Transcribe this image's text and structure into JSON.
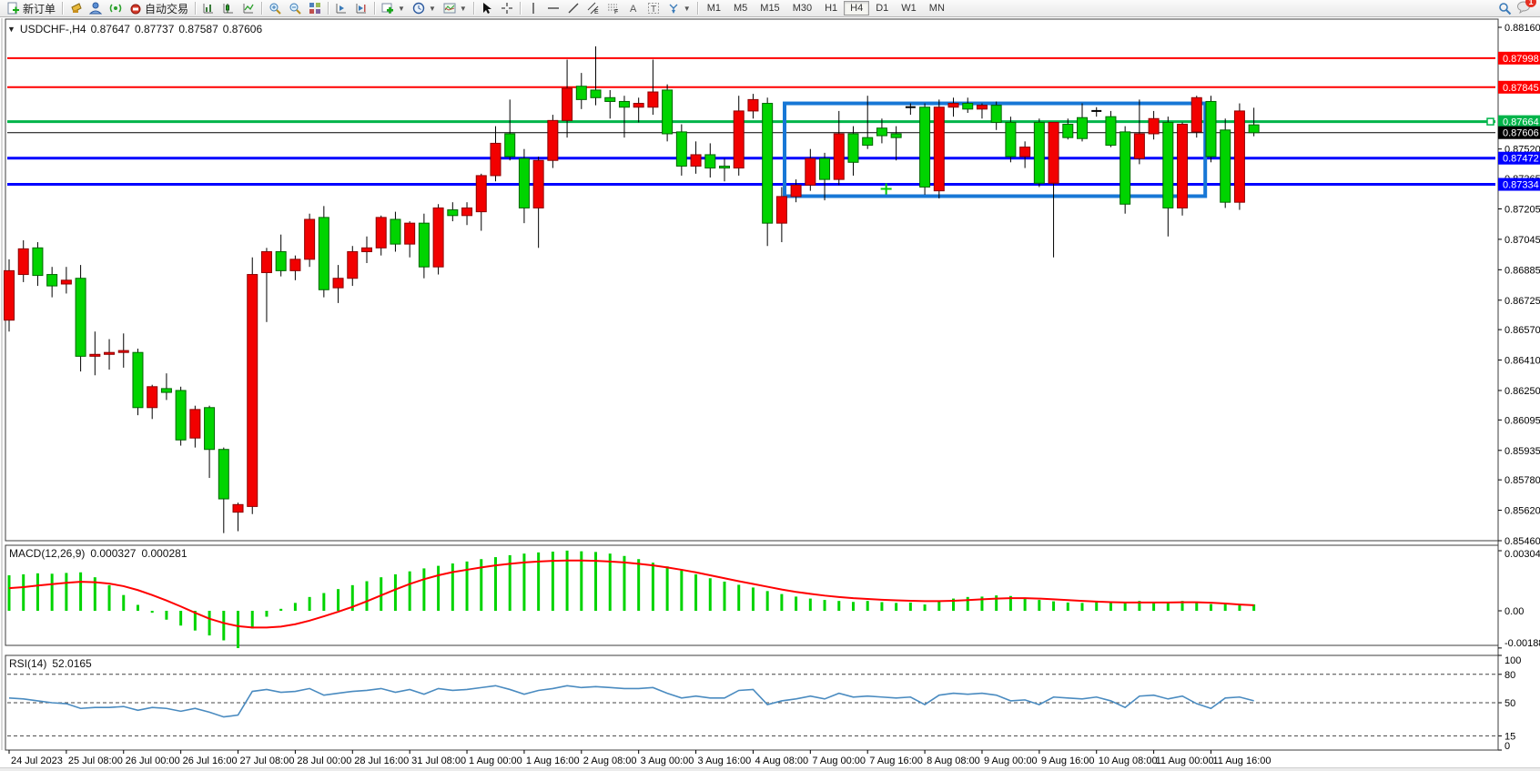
{
  "toolbar": {
    "new_order_label": "新订单",
    "auto_trading_label": "自动交易",
    "timeframes": [
      "M1",
      "M5",
      "M15",
      "M30",
      "H1",
      "H4",
      "D1",
      "W1",
      "MN"
    ],
    "active_timeframe": "H4",
    "notification_count": "1"
  },
  "chart": {
    "symbol_period": "USDCHF-,H4",
    "ohlc": {
      "open": "0.87647",
      "high": "0.87737",
      "low": "0.87587",
      "close": "0.87606"
    },
    "price_ticks": [
      "0.88160",
      "0.87520",
      "0.87365",
      "0.87205",
      "0.87045",
      "0.86885",
      "0.86725",
      "0.86570",
      "0.86410",
      "0.86250",
      "0.86095",
      "0.85935",
      "0.85780",
      "0.85620",
      "0.85460"
    ],
    "price_min": "0.85460",
    "price_max": "0.88160",
    "hlines": [
      {
        "type": "resistance",
        "label": "0.87998",
        "color": "#ff0000",
        "thickness": 2
      },
      {
        "type": "resistance",
        "label": "0.87845",
        "color": "#ff0000",
        "thickness": 2
      },
      {
        "type": "pivot",
        "label": "0.87664",
        "color": "#00b44a",
        "thickness": 3,
        "endpoint_marker": true
      },
      {
        "type": "current-price",
        "label": "0.87606",
        "color": "#000000",
        "thickness": 1
      },
      {
        "type": "support",
        "label": "0.87472",
        "color": "#0000ff",
        "thickness": 3
      },
      {
        "type": "support",
        "label": "0.87334",
        "color": "#0000ff",
        "thickness": 3
      }
    ],
    "rectangle": {
      "price_top": 0.8776,
      "price_bottom": 0.87272,
      "index_start": 54.2,
      "index_end": 83.6,
      "color": "#1777d6"
    },
    "marker_cross": {
      "index": 61.3,
      "price": 0.8731,
      "color": "#00cc00"
    },
    "colors": {
      "bull": "#f20000",
      "bear": "#00d400",
      "wick": "#000000",
      "background": "#ffffff",
      "axis_text": "#000000"
    }
  },
  "indicators": {
    "macd": {
      "name": "MACD(12,26,9)",
      "value_main": "0.000327",
      "value_signal": "0.000281",
      "axis_labels": [
        "0.003046",
        "0.00",
        "-0.001886"
      ],
      "histogram_color": "#00d400",
      "signal_color": "#ff0000"
    },
    "rsi": {
      "name": "RSI(14)",
      "value": "52.0165",
      "axis_labels": [
        "100",
        "80",
        "50",
        "15",
        "0"
      ],
      "levels": [
        80,
        50,
        15
      ],
      "line_color": "#4a8bc0"
    }
  },
  "chart_data": {
    "type": "candlestick",
    "title": "USDCHF-,H4",
    "x_labels": [
      "24 Jul 2023",
      "25 Jul 08:00",
      "26 Jul 00:00",
      "26 Jul 16:00",
      "27 Jul 08:00",
      "28 Jul 00:00",
      "28 Jul 16:00",
      "31 Jul 08:00",
      "1 Aug 00:00",
      "1 Aug 16:00",
      "2 Aug 08:00",
      "3 Aug 00:00",
      "3 Aug 16:00",
      "4 Aug 08:00",
      "7 Aug 00:00",
      "7 Aug 16:00",
      "8 Aug 08:00",
      "9 Aug 00:00",
      "9 Aug 16:00",
      "10 Aug 08:00",
      "11 Aug 00:00",
      "11 Aug 16:00"
    ],
    "label_every_n_candles": 4,
    "candles": [
      [
        0.8662,
        0.8694,
        0.8656,
        0.8688
      ],
      [
        0.8686,
        0.8704,
        0.8682,
        0.86995
      ],
      [
        0.87,
        0.8703,
        0.868,
        0.86855
      ],
      [
        0.8686,
        0.869,
        0.8674,
        0.868
      ],
      [
        0.8681,
        0.869,
        0.8676,
        0.8683
      ],
      [
        0.8684,
        0.8691,
        0.8635,
        0.8643
      ],
      [
        0.8643,
        0.8656,
        0.8633,
        0.8644
      ],
      [
        0.8644,
        0.8652,
        0.8636,
        0.8645
      ],
      [
        0.8645,
        0.8655,
        0.8637,
        0.8646
      ],
      [
        0.8645,
        0.8647,
        0.8612,
        0.8616
      ],
      [
        0.8616,
        0.8628,
        0.861,
        0.8627
      ],
      [
        0.8626,
        0.8634,
        0.862,
        0.8624
      ],
      [
        0.8625,
        0.8627,
        0.8596,
        0.8599
      ],
      [
        0.86,
        0.8617,
        0.8595,
        0.8615
      ],
      [
        0.8616,
        0.8617,
        0.8579,
        0.8594
      ],
      [
        0.8594,
        0.8595,
        0.855,
        0.8568
      ],
      [
        0.8561,
        0.8566,
        0.8551,
        0.8565
      ],
      [
        0.8564,
        0.8695,
        0.856,
        0.8686
      ],
      [
        0.8687,
        0.87,
        0.8661,
        0.8698
      ],
      [
        0.8698,
        0.8707,
        0.8685,
        0.8688
      ],
      [
        0.8688,
        0.8696,
        0.8683,
        0.8694
      ],
      [
        0.8694,
        0.8718,
        0.869,
        0.8715
      ],
      [
        0.8716,
        0.8722,
        0.8674,
        0.8678
      ],
      [
        0.8679,
        0.8691,
        0.8671,
        0.8684
      ],
      [
        0.8684,
        0.8701,
        0.868,
        0.8698
      ],
      [
        0.8698,
        0.8706,
        0.8692,
        0.87
      ],
      [
        0.87,
        0.8717,
        0.8696,
        0.8716
      ],
      [
        0.8715,
        0.8719,
        0.8698,
        0.8702
      ],
      [
        0.8702,
        0.8714,
        0.8695,
        0.8713
      ],
      [
        0.8713,
        0.8718,
        0.8684,
        0.869
      ],
      [
        0.869,
        0.8723,
        0.8686,
        0.8721
      ],
      [
        0.872,
        0.8724,
        0.8714,
        0.8717
      ],
      [
        0.8717,
        0.8724,
        0.8712,
        0.8721
      ],
      [
        0.8719,
        0.8739,
        0.8709,
        0.8738
      ],
      [
        0.8738,
        0.8764,
        0.8735,
        0.8755
      ],
      [
        0.876,
        0.8778,
        0.8746,
        0.8748
      ],
      [
        0.8747,
        0.8752,
        0.8713,
        0.8721
      ],
      [
        0.8721,
        0.8748,
        0.87,
        0.8746
      ],
      [
        0.8746,
        0.877,
        0.8742,
        0.8767
      ],
      [
        0.8767,
        0.8799,
        0.8758,
        0.8784
      ],
      [
        0.8785,
        0.8792,
        0.8773,
        0.8778
      ],
      [
        0.8783,
        0.8806,
        0.8775,
        0.8779
      ],
      [
        0.8779,
        0.8783,
        0.8768,
        0.8777
      ],
      [
        0.8777,
        0.878,
        0.8758,
        0.8774
      ],
      [
        0.8774,
        0.8779,
        0.8766,
        0.8776
      ],
      [
        0.8774,
        0.8799,
        0.877,
        0.8782
      ],
      [
        0.8783,
        0.8786,
        0.8756,
        0.876
      ],
      [
        0.8761,
        0.8765,
        0.8738,
        0.8743
      ],
      [
        0.8743,
        0.8756,
        0.8739,
        0.8749
      ],
      [
        0.8749,
        0.8755,
        0.8737,
        0.8742
      ],
      [
        0.8743,
        0.8747,
        0.8735,
        0.8742
      ],
      [
        0.8742,
        0.878,
        0.8738,
        0.8772
      ],
      [
        0.8772,
        0.8781,
        0.8768,
        0.8778
      ],
      [
        0.8776,
        0.8779,
        0.8701,
        0.8713
      ],
      [
        0.8713,
        0.8732,
        0.8703,
        0.8727
      ],
      [
        0.8727,
        0.8736,
        0.8724,
        0.8733
      ],
      [
        0.8733,
        0.8752,
        0.873,
        0.8747
      ],
      [
        0.8747,
        0.875,
        0.8725,
        0.8736
      ],
      [
        0.8736,
        0.8772,
        0.8733,
        0.876
      ],
      [
        0.876,
        0.8764,
        0.8738,
        0.8745
      ],
      [
        0.8758,
        0.878,
        0.8752,
        0.8754
      ],
      [
        0.8763,
        0.8768,
        0.8755,
        0.8759
      ],
      [
        0.876,
        0.8764,
        0.8746,
        0.8758
      ],
      [
        0.8774,
        0.8776,
        0.877,
        0.8774
      ],
      [
        0.8774,
        0.8776,
        0.8728,
        0.8732
      ],
      [
        0.873,
        0.8778,
        0.8726,
        0.8774
      ],
      [
        0.8774,
        0.8779,
        0.8769,
        0.8776
      ],
      [
        0.8776,
        0.8779,
        0.8771,
        0.8773
      ],
      [
        0.8773,
        0.8776,
        0.8768,
        0.8775
      ],
      [
        0.8775,
        0.8777,
        0.8762,
        0.8766
      ],
      [
        0.8766,
        0.8769,
        0.8745,
        0.8748
      ],
      [
        0.8748,
        0.8756,
        0.8742,
        0.8753
      ],
      [
        0.8766,
        0.8768,
        0.8732,
        0.8734
      ],
      [
        0.8734,
        0.8766,
        0.8695,
        0.8766
      ],
      [
        0.8765,
        0.8768,
        0.8757,
        0.8758
      ],
      [
        0.87685,
        0.8776,
        0.8756,
        0.87575
      ],
      [
        0.8772,
        0.8774,
        0.8769,
        0.8772
      ],
      [
        0.8769,
        0.8772,
        0.8753,
        0.8754
      ],
      [
        0.8761,
        0.8764,
        0.8718,
        0.8723
      ],
      [
        0.8747,
        0.8778,
        0.8744,
        0.876
      ],
      [
        0.876,
        0.8772,
        0.8757,
        0.8768
      ],
      [
        0.8766,
        0.8769,
        0.8706,
        0.8721
      ],
      [
        0.8721,
        0.8766,
        0.8717,
        0.8765
      ],
      [
        0.8761,
        0.878,
        0.8758,
        0.8779
      ],
      [
        0.8777,
        0.878,
        0.8745,
        0.8748
      ],
      [
        0.8762,
        0.8768,
        0.8721,
        0.8724
      ],
      [
        0.8724,
        0.8776,
        0.872,
        0.8772
      ],
      [
        0.87647,
        0.87737,
        0.87587,
        0.87606
      ]
    ],
    "macd": {
      "histogram": [
        0.0018,
        0.00185,
        0.0019,
        0.00188,
        0.00192,
        0.00195,
        0.0017,
        0.0013,
        0.0008,
        0.0003,
        -0.0001,
        -0.00045,
        -0.00075,
        -0.001,
        -0.00125,
        -0.0015,
        -0.00189,
        -0.0009,
        -0.0003,
        0.0001,
        0.0004,
        0.0007,
        0.0009,
        0.0011,
        0.0013,
        0.0015,
        0.0017,
        0.00185,
        0.002,
        0.00215,
        0.00228,
        0.0024,
        0.0025,
        0.00262,
        0.00272,
        0.00282,
        0.0029,
        0.00296,
        0.003,
        0.00305,
        0.00302,
        0.00298,
        0.0029,
        0.00278,
        0.00262,
        0.00244,
        0.00225,
        0.00205,
        0.00185,
        0.00165,
        0.00148,
        0.00132,
        0.00118,
        0.001,
        0.00085,
        0.00072,
        0.00062,
        0.00055,
        0.0005,
        0.00045,
        0.0005,
        0.00044,
        0.0004,
        0.00042,
        0.00032,
        0.00052,
        0.00062,
        0.0007,
        0.00072,
        0.00078,
        0.00075,
        0.00065,
        0.00055,
        0.00048,
        0.00042,
        0.0004,
        0.00046,
        0.0004,
        0.00046,
        0.0005,
        0.00042,
        0.00046,
        0.0005,
        0.00044,
        0.00034,
        0.0004,
        0.00034,
        0.000327
      ],
      "signal": [
        0.00115,
        0.0012,
        0.00128,
        0.00135,
        0.00142,
        0.00147,
        0.00145,
        0.00138,
        0.00125,
        0.00105,
        0.0008,
        0.00052,
        0.00022,
        -0.0001,
        -0.0004,
        -0.00062,
        -0.00078,
        -0.00085,
        -0.00085,
        -0.0008,
        -0.00068,
        -0.0005,
        -0.00028,
        -5e-05,
        0.0002,
        0.00048,
        0.00078,
        0.00108,
        0.00136,
        0.0016,
        0.0018,
        0.00196,
        0.00208,
        0.0022,
        0.0023,
        0.00238,
        0.00245,
        0.0025,
        0.00253,
        0.00255,
        0.00255,
        0.00253,
        0.0025,
        0.00245,
        0.00238,
        0.0023,
        0.0022,
        0.00208,
        0.00195,
        0.0018,
        0.00165,
        0.0015,
        0.00136,
        0.00122,
        0.00108,
        0.00096,
        0.00086,
        0.00077,
        0.0007,
        0.00064,
        0.0006,
        0.00056,
        0.00053,
        0.00051,
        0.00049,
        0.00049,
        0.00051,
        0.00054,
        0.00058,
        0.00062,
        0.00064,
        0.00064,
        0.00062,
        0.00058,
        0.00054,
        0.0005,
        0.00047,
        0.00044,
        0.00042,
        0.00042,
        0.00042,
        0.00042,
        0.00043,
        0.00043,
        0.00041,
        0.00037,
        0.00032,
        0.000281
      ],
      "axis_max": 0.003046,
      "axis_min": -0.001886
    },
    "rsi": {
      "values": [
        55,
        54,
        52,
        50,
        49,
        44,
        45,
        45,
        46,
        42,
        45,
        44,
        41,
        44,
        40,
        35,
        37,
        62,
        64,
        61,
        62,
        65,
        58,
        60,
        62,
        63,
        65,
        61,
        64,
        59,
        65,
        63,
        64,
        66,
        68,
        64,
        59,
        63,
        65,
        68,
        66,
        67,
        66,
        65,
        65,
        66,
        60,
        55,
        57,
        55,
        55,
        63,
        64,
        48,
        52,
        54,
        57,
        54,
        60,
        56,
        57,
        56,
        55,
        56,
        48,
        58,
        60,
        59,
        60,
        58,
        52,
        53,
        48,
        56,
        55,
        54,
        56,
        52,
        45,
        57,
        58,
        54,
        57,
        49,
        44,
        55,
        56,
        52.0165
      ],
      "range": [
        0,
        100
      ]
    }
  }
}
